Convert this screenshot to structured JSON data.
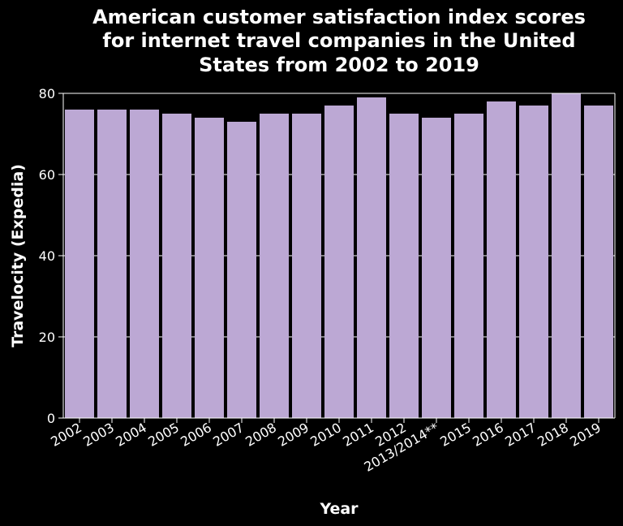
{
  "chart_data": {
    "type": "bar",
    "title_lines": [
      "American customer satisfaction index scores",
      "for internet travel companies in the United",
      "States from 2002 to 2019"
    ],
    "xlabel": "Year",
    "ylabel": "Travelocity (Expedia)",
    "categories": [
      "2002",
      "2003",
      "2004",
      "2005",
      "2006",
      "2007",
      "2008",
      "2009",
      "2010",
      "2011",
      "2012",
      "2013/2014**",
      "2015",
      "2016",
      "2017",
      "2018",
      "2019"
    ],
    "values": [
      76,
      76,
      76,
      75,
      74,
      73,
      75,
      75,
      77,
      79,
      75,
      74,
      75,
      78,
      77,
      80,
      77
    ],
    "ylim": [
      0,
      80
    ],
    "yticks": [
      0,
      20,
      40,
      60,
      80
    ],
    "grid": true,
    "bar_color": "#bca8d4",
    "background": "#000000",
    "text_color": "#ffffff"
  }
}
